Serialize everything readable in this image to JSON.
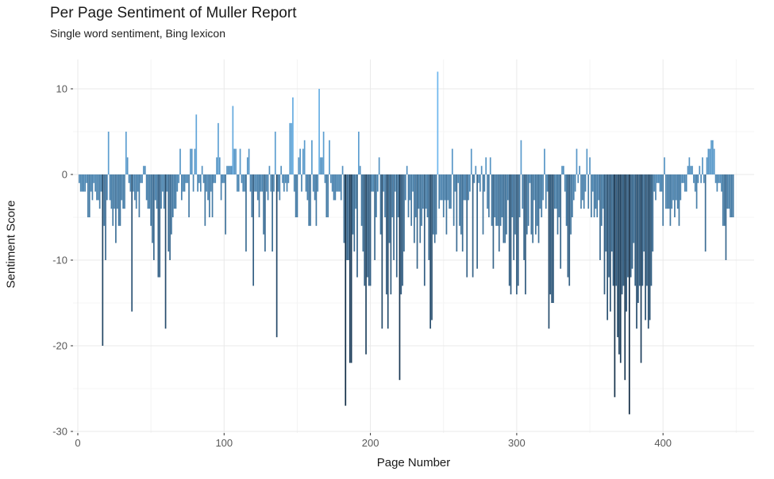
{
  "chart_data": {
    "type": "bar",
    "title": "Per Page Sentiment of Muller Report",
    "subtitle": "Single word sentiment, Bing lexicon",
    "xlabel": "Page Number",
    "ylabel": "Sentiment Score",
    "x_description": "sequential report page numbers 1 to 448",
    "x_start": 1,
    "n_pages": 448,
    "xlim": [
      -3,
      462
    ],
    "ylim": [
      -30.5,
      13.5
    ],
    "x_tick_values": [
      0,
      100,
      200,
      300,
      400
    ],
    "x_tick_labels": [
      "0",
      "100",
      "200",
      "300",
      "400"
    ],
    "x_minor_gridlines": [
      50,
      150,
      250,
      350,
      450
    ],
    "y_tick_values": [
      10,
      0,
      -10,
      -20,
      -30
    ],
    "y_tick_labels": [
      "10",
      "0",
      "-10",
      "-20",
      "-30"
    ],
    "y_minor_gridlines": [
      5,
      -5,
      -15,
      -25
    ],
    "grid": true,
    "legend_position": "none",
    "bar_color_scale": {
      "type": "linear-by-value",
      "domain": [
        -28,
        12
      ],
      "dark_low": "#102a42",
      "light_high": "#6db7ee"
    },
    "values": [
      -1,
      -2,
      -2,
      -2,
      -2,
      -1,
      -5,
      -5,
      -2,
      -3,
      -1,
      -2,
      -3,
      -3,
      -4,
      -2,
      -20,
      -6,
      -10,
      -3,
      5,
      -3,
      -4,
      -6,
      -4,
      -8,
      -4,
      -6,
      -6,
      -3,
      -4,
      -4,
      5,
      2,
      -1,
      -2,
      -16,
      -2,
      -3,
      -4,
      -2,
      -5,
      -1,
      -1,
      1,
      1,
      -3,
      -4,
      -4,
      -6,
      -8,
      -10,
      -3,
      -4,
      -12,
      -12,
      -4,
      -2,
      -4,
      -18,
      -2,
      -9,
      -10,
      -7,
      -5,
      -4,
      -4,
      -2,
      -1,
      3,
      -3,
      -2,
      -2,
      -1,
      -1,
      -5,
      3,
      3,
      -2,
      3,
      7,
      -2,
      -1,
      -2,
      1,
      -1,
      -6,
      -2,
      -3,
      -5,
      -2,
      -5,
      -1,
      -1,
      2,
      6,
      2,
      -3,
      -1,
      -1,
      -7,
      1,
      1,
      1,
      1,
      8,
      3,
      3,
      -2,
      -2,
      3,
      -1,
      -2,
      -2,
      -9,
      2,
      3,
      -2,
      -5,
      -13,
      -2,
      -2,
      -3,
      -5,
      -2,
      -2,
      -7,
      -9,
      -2,
      -3,
      1,
      -2,
      -9,
      -2,
      5,
      -19,
      -2,
      -3,
      1,
      -1,
      -2,
      -1,
      -2,
      -1,
      6,
      6,
      9,
      -2,
      -5,
      -5,
      2,
      3,
      -2,
      3,
      4,
      -2,
      -3,
      -6,
      -6,
      4,
      -2,
      -3,
      -6,
      -2,
      10,
      2,
      2,
      5,
      -1,
      -5,
      -5,
      4,
      -1,
      -2,
      -3,
      -3,
      -2,
      -2,
      -2,
      -3,
      1,
      -8,
      -27,
      -10,
      -10,
      -22,
      -22,
      -7,
      -9,
      -4,
      -12,
      5,
      1,
      -6,
      -9,
      -13,
      -21,
      -12,
      -13,
      -13,
      -2,
      -2,
      -10,
      -5,
      -2,
      2,
      -7,
      -18,
      -2,
      -5,
      -14,
      -18,
      -8,
      -14,
      -5,
      -10,
      -2,
      -12,
      -5,
      -24,
      -14,
      -13,
      -9,
      -3,
      1,
      -5,
      -3,
      -6,
      -2,
      -8,
      -5,
      -11,
      -4,
      -8,
      -6,
      -4,
      -13,
      -4,
      -5,
      -10,
      -18,
      -17,
      -7,
      -8,
      -7,
      12,
      -4,
      -3,
      -3,
      -5,
      -3,
      -7,
      -3,
      -4,
      -4,
      3,
      -6,
      -2,
      -9,
      -1,
      -6,
      -7,
      -9,
      -3,
      -3,
      -12,
      -3,
      -2,
      3,
      -12,
      -1,
      1,
      -11,
      -1,
      -2,
      1,
      -7,
      -2,
      2,
      -4,
      -5,
      2,
      -6,
      -11,
      -5,
      -6,
      -6,
      -9,
      -6,
      -5,
      -8,
      -8,
      -7,
      -3,
      -13,
      -14,
      -5,
      -10,
      -7,
      -14,
      -13,
      -5,
      4,
      -4,
      -10,
      -14,
      -7,
      -6,
      -1,
      -7,
      -8,
      -3,
      -7,
      -6,
      -8,
      -4,
      -5,
      -3,
      3,
      -4,
      -2,
      -18,
      -14,
      -15,
      -15,
      -4,
      -4,
      -7,
      -5,
      -11,
      1,
      1,
      -2,
      -6,
      -12,
      -13,
      -7,
      -5,
      -3,
      -2,
      3,
      -1,
      1,
      -4,
      -3,
      -4,
      -2,
      3,
      -4,
      2,
      -5,
      -2,
      -5,
      -4,
      -5,
      -3,
      -10,
      -6,
      -4,
      -14,
      -9,
      -17,
      -12,
      -16,
      -9,
      -13,
      -26,
      -13,
      -19,
      -21,
      -22,
      -14,
      -13,
      -24,
      -16,
      -12,
      -28,
      -12,
      -11,
      -8,
      -13,
      -18,
      -15,
      -13,
      -22,
      -13,
      -9,
      -17,
      -13,
      -18,
      -17,
      -13,
      -9,
      -2,
      -3,
      -1,
      -1,
      -2,
      -2,
      -6,
      2,
      -4,
      -4,
      -4,
      -6,
      -4,
      -3,
      -5,
      -3,
      -4,
      -6,
      -3,
      -1,
      -1,
      -2,
      -2,
      1,
      2,
      1,
      1,
      -1,
      -2,
      -4,
      -1,
      1,
      -1,
      2,
      -1,
      -9,
      2,
      3,
      3,
      4,
      4,
      3,
      -1,
      -2,
      -1,
      -1,
      -2,
      -6,
      -6,
      -10,
      -4,
      -4,
      -5,
      -5,
      -5
    ]
  },
  "theme": {
    "background": "#ffffff",
    "grid_major": "#e9e9e9",
    "grid_minor": "#f4f4f4",
    "tick_mark": "#333333",
    "tick_label": "#595959",
    "axis_title": "#1a1a1a",
    "title_color": "#191919"
  }
}
